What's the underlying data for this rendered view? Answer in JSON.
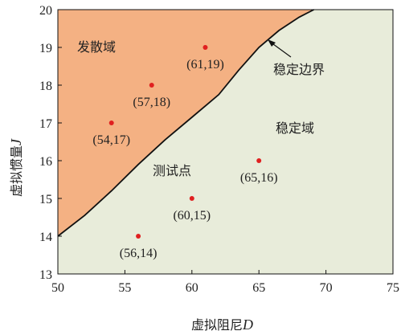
{
  "chart_data": {
    "type": "scatter",
    "title": "",
    "xlabel": "虚拟阻尼",
    "xlabel_var": "D",
    "ylabel": "虚拟惯量",
    "ylabel_var": "J",
    "xlim": [
      50,
      75
    ],
    "ylim": [
      13,
      20
    ],
    "xticks": [
      "50",
      "55",
      "60",
      "65",
      "70",
      "75"
    ],
    "yticks": [
      "13",
      "14",
      "15",
      "16",
      "17",
      "18",
      "19",
      "20"
    ],
    "boundary": {
      "name": "稳定边界",
      "x": [
        50,
        52,
        54,
        56,
        58,
        60,
        62,
        63.5,
        65,
        66.5,
        68,
        69.1
      ],
      "y": [
        14.0,
        14.55,
        15.2,
        15.9,
        16.55,
        17.15,
        17.75,
        18.4,
        19.0,
        19.45,
        19.8,
        20.0
      ]
    },
    "regions": {
      "unstable": {
        "label": "发散域",
        "color": "#f4b183"
      },
      "stable": {
        "label": "稳定域",
        "color": "#e8ecda"
      }
    },
    "annotation": "稳定边界",
    "test_points_label": "测试点",
    "point_color": "#e02020",
    "points": [
      {
        "x": 61,
        "y": 19,
        "label": "(61,19)"
      },
      {
        "x": 57,
        "y": 18,
        "label": "(57,18)"
      },
      {
        "x": 54,
        "y": 17,
        "label": "(54,17)"
      },
      {
        "x": 65,
        "y": 16,
        "label": "(65,16)"
      },
      {
        "x": 60,
        "y": 15,
        "label": "(60,15)"
      },
      {
        "x": 56,
        "y": 14,
        "label": "(56,14)"
      }
    ]
  }
}
